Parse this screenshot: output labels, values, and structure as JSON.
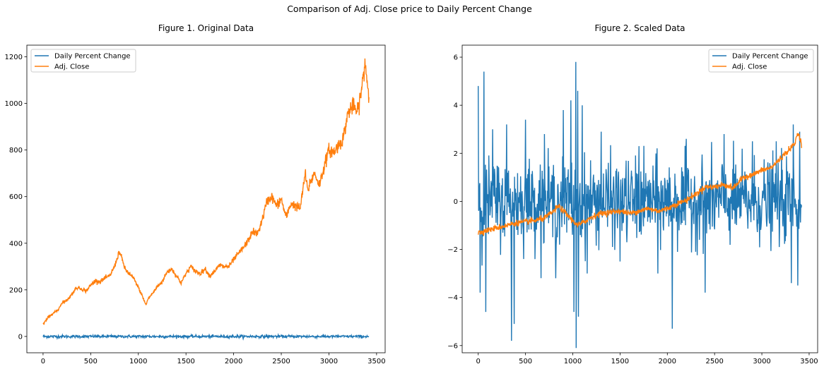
{
  "suptitle": "Comparison of Adj. Close price to Daily Percent Change",
  "colors": {
    "daily": "#1f77b4",
    "adj": "#ff7f0e"
  },
  "chart_data": [
    {
      "type": "line",
      "title": "Figure 1. Original Data",
      "xlabel": "",
      "ylabel": "",
      "xlim": [
        -170,
        3590
      ],
      "ylim": [
        -70,
        1250
      ],
      "xticks": [
        0,
        500,
        1000,
        1500,
        2000,
        2500,
        3000,
        3500
      ],
      "yticks": [
        0,
        200,
        400,
        600,
        800,
        1000,
        1200
      ],
      "legend": "top-left",
      "series": [
        {
          "name": "Daily Percent Change",
          "color_key": "daily",
          "kind": "noise",
          "noise_amp": 5,
          "x": [
            0,
            3420
          ],
          "values": [
            0,
            0
          ]
        },
        {
          "name": "Adj. Close",
          "color_key": "adj",
          "kind": "trend",
          "x": [
            0,
            50,
            100,
            150,
            200,
            250,
            300,
            350,
            400,
            450,
            500,
            550,
            600,
            650,
            700,
            750,
            800,
            830,
            860,
            900,
            950,
            1000,
            1050,
            1080,
            1100,
            1150,
            1200,
            1250,
            1300,
            1350,
            1400,
            1450,
            1500,
            1550,
            1600,
            1650,
            1700,
            1750,
            1800,
            1850,
            1900,
            1950,
            2000,
            2050,
            2100,
            2150,
            2200,
            2250,
            2300,
            2350,
            2400,
            2450,
            2500,
            2550,
            2600,
            2650,
            2700,
            2750,
            2780,
            2800,
            2850,
            2900,
            2950,
            3000,
            3050,
            3100,
            3150,
            3200,
            3250,
            3300,
            3350,
            3380,
            3400,
            3420
          ],
          "values": [
            50,
            80,
            100,
            110,
            145,
            155,
            180,
            210,
            205,
            195,
            220,
            240,
            235,
            250,
            260,
            300,
            365,
            330,
            290,
            270,
            250,
            210,
            165,
            135,
            160,
            185,
            215,
            235,
            275,
            290,
            260,
            230,
            270,
            300,
            280,
            270,
            290,
            260,
            280,
            305,
            300,
            300,
            330,
            355,
            380,
            410,
            450,
            440,
            500,
            580,
            600,
            560,
            590,
            510,
            570,
            560,
            550,
            700,
            620,
            660,
            700,
            650,
            730,
            800,
            790,
            820,
            850,
            960,
            990,
            960,
            1080,
            1180,
            1100,
            1030
          ]
        }
      ]
    },
    {
      "type": "line",
      "title": "Figure 2. Scaled Data",
      "xlabel": "",
      "ylabel": "",
      "xlim": [
        -170,
        3590
      ],
      "ylim": [
        -6.3,
        6.5
      ],
      "xticks": [
        0,
        500,
        1000,
        1500,
        2000,
        2500,
        3000,
        3500
      ],
      "yticks": [
        -6,
        -4,
        -2,
        0,
        2,
        4,
        6
      ],
      "legend": "top-right",
      "series": [
        {
          "name": "Daily Percent Change",
          "color_key": "daily",
          "kind": "noise",
          "noise_amp": 1.0,
          "x": [
            0,
            3420
          ],
          "values": [
            0,
            0
          ],
          "spikes": [
            [
              0,
              4.8
            ],
            [
              20,
              -3.8
            ],
            [
              60,
              5.4
            ],
            [
              80,
              -4.6
            ],
            [
              150,
              3.0
            ],
            [
              300,
              3.2
            ],
            [
              350,
              -5.8
            ],
            [
              380,
              -5.1
            ],
            [
              500,
              3.4
            ],
            [
              700,
              2.8
            ],
            [
              820,
              -3.2
            ],
            [
              900,
              3.8
            ],
            [
              980,
              4.2
            ],
            [
              1010,
              -4.6
            ],
            [
              1030,
              5.8
            ],
            [
              1035,
              -6.1
            ],
            [
              1050,
              4.6
            ],
            [
              1060,
              -4.8
            ],
            [
              1100,
              4.0
            ],
            [
              1150,
              -3.0
            ],
            [
              1300,
              2.9
            ],
            [
              1500,
              -2.5
            ],
            [
              1700,
              2.3
            ],
            [
              1900,
              -3.0
            ],
            [
              2050,
              -5.3
            ],
            [
              2200,
              2.6
            ],
            [
              2400,
              -3.8
            ],
            [
              2600,
              2.8
            ],
            [
              2900,
              2.5
            ],
            [
              3150,
              2.5
            ],
            [
              3310,
              -3.4
            ],
            [
              3330,
              3.2
            ],
            [
              3380,
              -3.5
            ],
            [
              3400,
              2.9
            ]
          ]
        },
        {
          "name": "Adj. Close",
          "color_key": "adj",
          "kind": "trend",
          "x": [
            0,
            100,
            200,
            300,
            400,
            500,
            600,
            700,
            800,
            850,
            900,
            1000,
            1050,
            1100,
            1200,
            1300,
            1400,
            1500,
            1600,
            1700,
            1800,
            1900,
            2000,
            2100,
            2200,
            2300,
            2400,
            2500,
            2600,
            2700,
            2800,
            2900,
            3000,
            3100,
            3200,
            3250,
            3300,
            3350,
            3380,
            3420
          ],
          "values": [
            -1.3,
            -1.2,
            -1.1,
            -1.0,
            -0.9,
            -0.85,
            -0.8,
            -0.7,
            -0.4,
            -0.2,
            -0.4,
            -0.8,
            -1.0,
            -0.9,
            -0.65,
            -0.5,
            -0.45,
            -0.4,
            -0.5,
            -0.4,
            -0.3,
            -0.4,
            -0.3,
            -0.1,
            0.05,
            0.3,
            0.6,
            0.6,
            0.7,
            0.55,
            1.0,
            1.1,
            1.3,
            1.4,
            1.8,
            2.0,
            2.2,
            2.4,
            2.9,
            2.4
          ]
        }
      ]
    }
  ]
}
